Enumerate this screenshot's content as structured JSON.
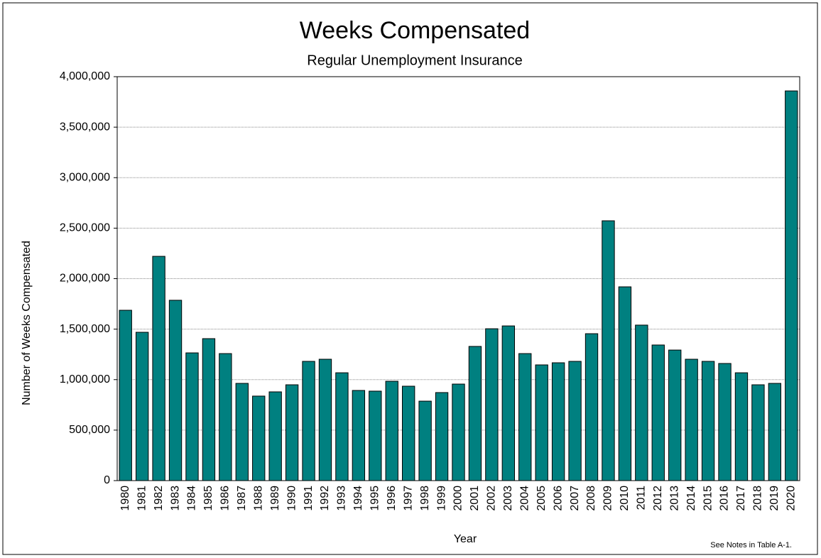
{
  "chart_data": {
    "type": "bar",
    "title": "Weeks Compensated",
    "subtitle": "Regular Unemployment Insurance",
    "x_label": "Year",
    "y_label": "Number of Weeks Compensated",
    "annotation": "See Notes in Table A-1.",
    "categories": [
      "1980",
      "1981",
      "1982",
      "1983",
      "1984",
      "1985",
      "1986",
      "1987",
      "1988",
      "1989",
      "1990",
      "1991",
      "1992",
      "1993",
      "1994",
      "1995",
      "1996",
      "1997",
      "1998",
      "1999",
      "2000",
      "2001",
      "2002",
      "2003",
      "2004",
      "2005",
      "2006",
      "2007",
      "2008",
      "2009",
      "2010",
      "2011",
      "2012",
      "2013",
      "2014",
      "2015",
      "2016",
      "2017",
      "2018",
      "2019",
      "2020"
    ],
    "values": [
      1687000,
      1469000,
      2221000,
      1786000,
      1265000,
      1406000,
      1258000,
      963000,
      837000,
      879000,
      949000,
      1181000,
      1202000,
      1068000,
      893000,
      886000,
      984000,
      935000,
      787000,
      872000,
      956000,
      1329000,
      1504000,
      1532000,
      1258000,
      1146000,
      1167000,
      1181000,
      1455000,
      2573000,
      1919000,
      1540000,
      1343000,
      1293000,
      1202000,
      1181000,
      1160000,
      1068000,
      949000,
      963000,
      3859000
    ],
    "color": "#008080",
    "ylim": [
      0,
      4000000
    ],
    "yticks": [
      0,
      {
        "value": 500000,
        "label": "500,000"
      },
      {
        "value": 1000000,
        "label": "1,000,000"
      },
      {
        "value": 1500000,
        "label": "1,500,000"
      },
      {
        "value": 2000000,
        "label": "2,000,000"
      },
      {
        "value": 2500000,
        "label": "2,500,000"
      },
      {
        "value": 3000000,
        "label": "3,000,000"
      },
      {
        "value": 3500000,
        "label": "3,500,000"
      },
      {
        "value": 4000000,
        "label": "4,000,000"
      }
    ],
    "grid": true
  }
}
